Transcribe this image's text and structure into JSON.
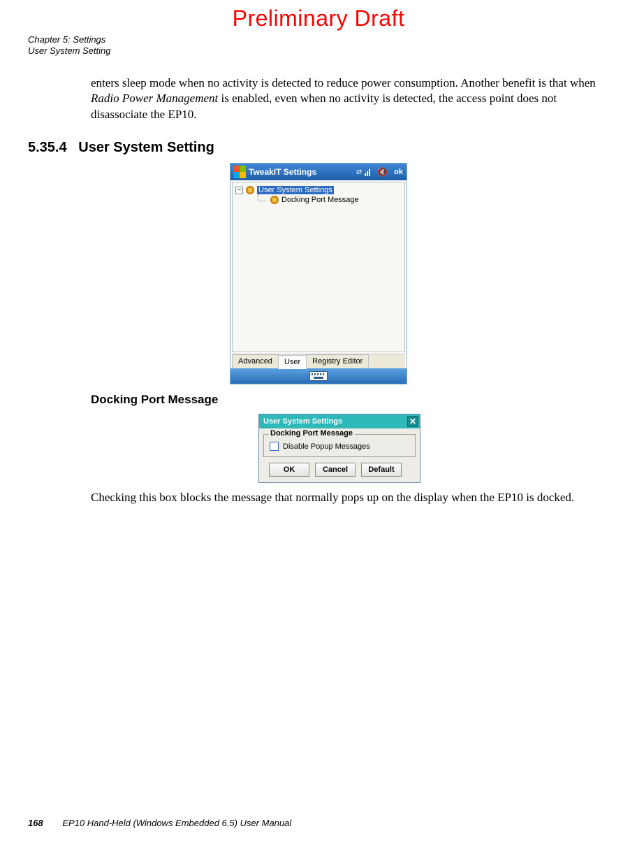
{
  "banner": "Preliminary Draft",
  "header": {
    "line1": "Chapter 5: Settings",
    "line2": "User System Setting"
  },
  "para1_a": "enters sleep mode when no activity is detected to reduce power consumption. Another benefit is that when ",
  "para1_ital": "Radio Power Management",
  "para1_b": " is enabled, even when no activity is de­tected, the access point does not disassociate the EP10.",
  "section_no": "5.35.4",
  "section_title": "User System Setting",
  "pda": {
    "title": "TweakIT Settings",
    "ok": "ok",
    "tree_root": "User System Settings",
    "tree_child": "Docking Port Message",
    "tabs": {
      "t1": "Advanced",
      "t2": "User",
      "t3": "Registry Editor"
    }
  },
  "subheading": "Docking Port Message",
  "dlg": {
    "title": "User System Settings",
    "group": "Docking Port Message",
    "checkbox": "Disable Popup Messages",
    "ok": "OK",
    "cancel": "Cancel",
    "def": "Default"
  },
  "para2": "Checking this box blocks the message that normally pops up on the display when the EP10 is docked.",
  "footer": {
    "page": "168",
    "doc": "EP10 Hand-Held (Windows Embedded 6.5) User Manual"
  }
}
